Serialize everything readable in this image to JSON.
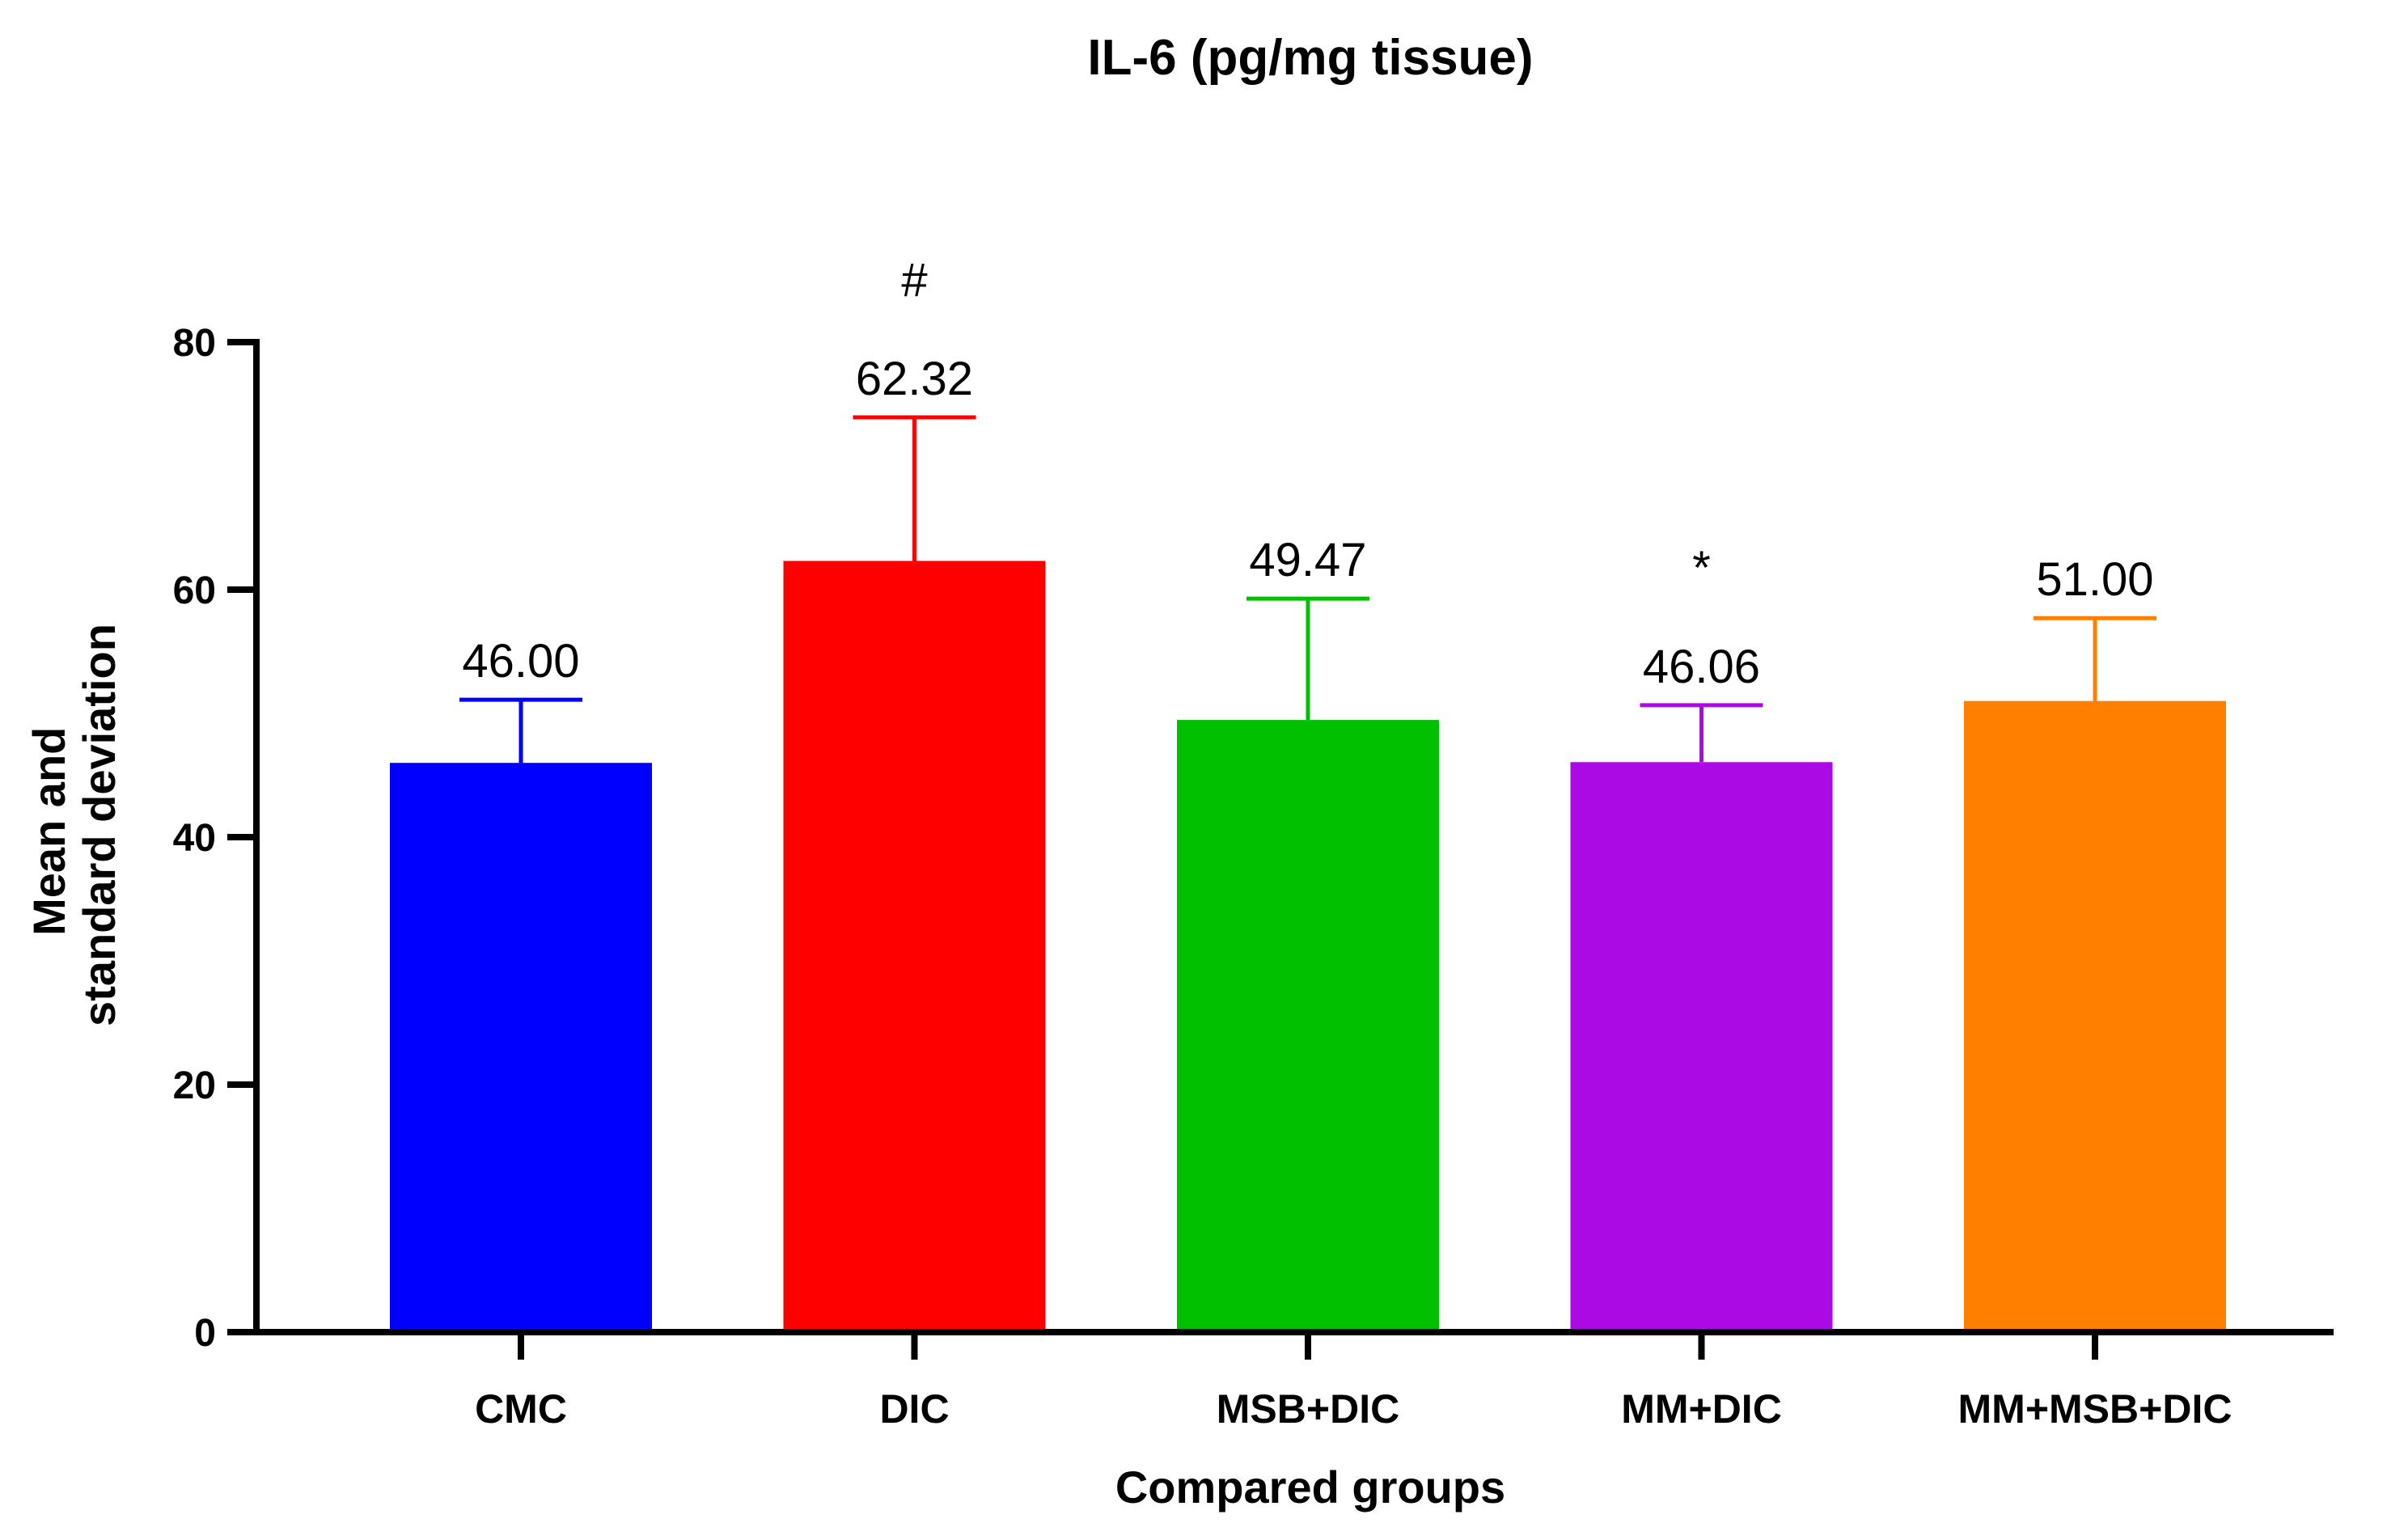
{
  "chart_data": {
    "type": "bar",
    "title": "IL-6 (pg/mg tissue)",
    "xlabel": "Compared groups",
    "ylabel_lines": [
      "Mean and",
      "standard deviation"
    ],
    "ylim": [
      0,
      80
    ],
    "yticks": [
      0,
      20,
      40,
      60,
      80
    ],
    "ytick_labels": [
      "0",
      "20",
      "40",
      "60",
      "80"
    ],
    "grid": false,
    "categories": [
      "CMC",
      "DIC",
      "MSB+DIC",
      "MM+DIC",
      "MM+MSB+DIC"
    ],
    "values": [
      46.0,
      62.32,
      49.47,
      46.06,
      51.0
    ],
    "error": [
      5.1,
      11.6,
      9.8,
      4.6,
      6.7
    ],
    "data_labels": [
      "46.00",
      "62.32",
      "49.47",
      "46.06",
      "51.00"
    ],
    "significance": [
      "",
      "#",
      "",
      "*",
      ""
    ],
    "colors": [
      "#0000ff",
      "#ff0000",
      "#00c000",
      "#ac0ae4",
      "#ff8000"
    ]
  }
}
